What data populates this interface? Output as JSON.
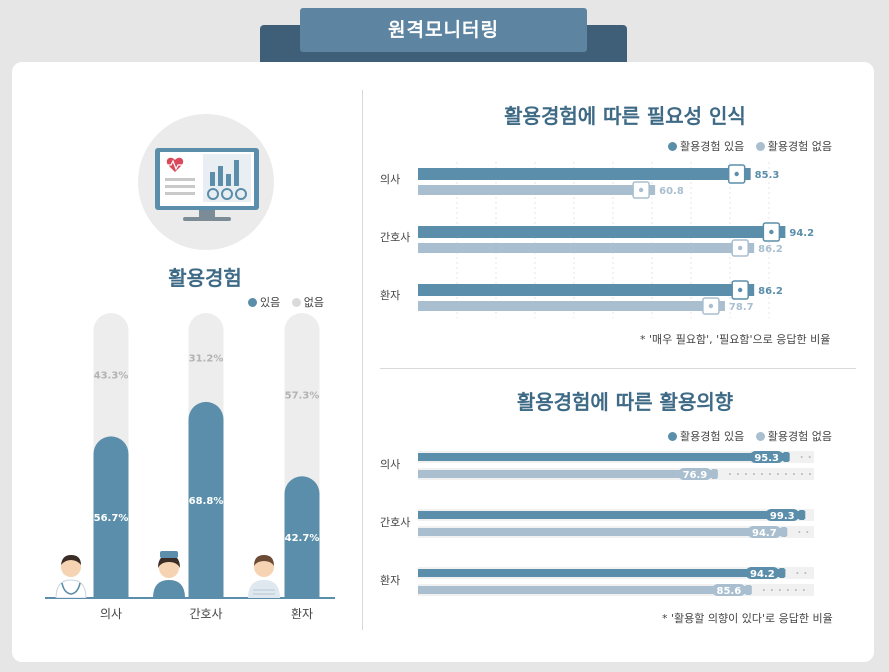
{
  "header": {
    "title": "원격모니터링"
  },
  "left": {
    "title": "활용경험",
    "legend": [
      {
        "label": "있음",
        "color": "#5a8eaa"
      },
      {
        "label": "없음",
        "color": "#dadada"
      }
    ]
  },
  "right_top": {
    "title": "활용경험에 따른 필요성 인식",
    "legend": [
      {
        "label": "활용경험 있음",
        "color": "#5a8eaa"
      },
      {
        "label": "활용경험 없음",
        "color": "#a9bfcf"
      }
    ],
    "note": "* '매우 필요함', '필요함'으로 응답한 비율"
  },
  "right_bottom": {
    "title": "활용경험에 따른 활용의향",
    "legend": [
      {
        "label": "활용경험 있음",
        "color": "#5a8eaa"
      },
      {
        "label": "활용경험 없음",
        "color": "#a9bfcf"
      }
    ],
    "note": "* '활용할 의향이 있다'로 응답한 비율"
  },
  "icons": {
    "monitor": "monitor-heart-chart-icon",
    "doctor": "doctor-avatar-icon",
    "nurse": "nurse-avatar-icon",
    "patient": "patient-avatar-icon"
  },
  "chart_data": [
    {
      "type": "bar",
      "title": "활용경험",
      "categories": [
        "의사",
        "간호사",
        "환자"
      ],
      "series": [
        {
          "name": "있음",
          "values": [
            56.7,
            68.8,
            42.7
          ],
          "color": "#5a8eaa"
        },
        {
          "name": "없음",
          "values": [
            43.3,
            31.2,
            57.3
          ],
          "color": "#ededed"
        }
      ],
      "unit": "%",
      "stacked": true
    },
    {
      "type": "bar",
      "orientation": "horizontal",
      "title": "활용경험에 따른 필요성 인식",
      "categories": [
        "의사",
        "간호사",
        "환자"
      ],
      "series": [
        {
          "name": "활용경험 있음",
          "values": [
            85.3,
            94.2,
            86.2
          ],
          "color": "#5a8eaa"
        },
        {
          "name": "활용경험 없음",
          "values": [
            60.8,
            86.2,
            78.7
          ],
          "color": "#a9bfcf"
        }
      ],
      "xlim": [
        0,
        100
      ]
    },
    {
      "type": "bar",
      "orientation": "horizontal",
      "title": "활용경험에 따른 활용의향",
      "categories": [
        "의사",
        "간호사",
        "환자"
      ],
      "series": [
        {
          "name": "활용경험 있음",
          "values": [
            95.3,
            99.3,
            94.2
          ],
          "color": "#5a8eaa"
        },
        {
          "name": "활용경험 없음",
          "values": [
            76.9,
            94.7,
            85.6
          ],
          "color": "#a9bfcf"
        }
      ],
      "xlim": [
        0,
        100
      ]
    }
  ]
}
